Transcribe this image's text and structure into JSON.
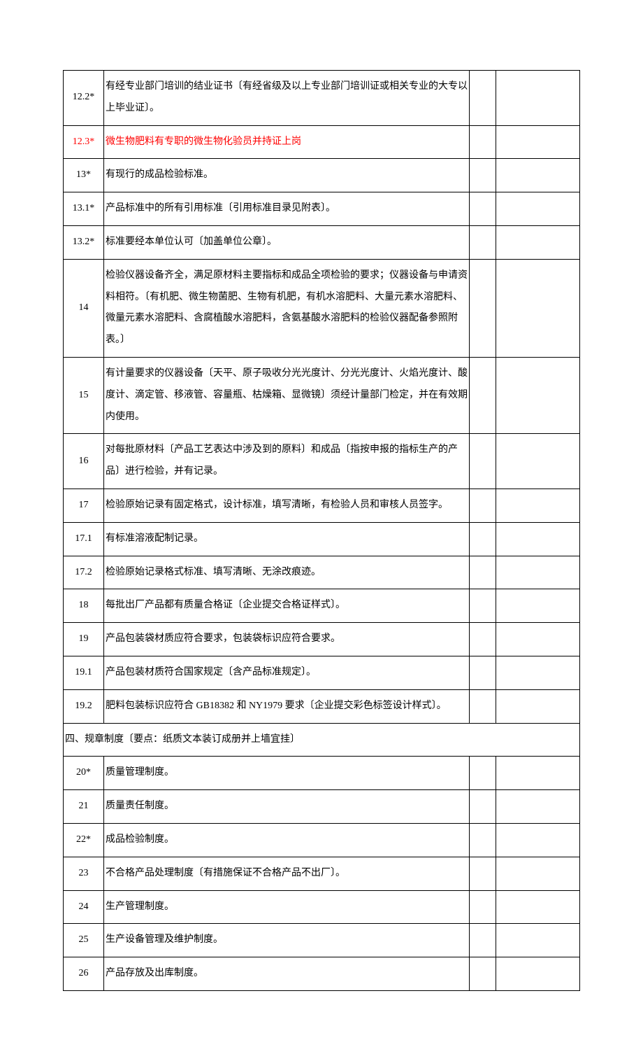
{
  "rows": [
    {
      "num": "12.2*",
      "desc": "有经专业部门培训的结业证书〔有经省级及以上专业部门培训证或相关专业的大专以上毕业证〕。",
      "highlight": false,
      "section": false
    },
    {
      "num": "12.3*",
      "desc": "微生物肥料有专职的微生物化验员并持证上岗",
      "highlight": true,
      "section": false
    },
    {
      "num": "13*",
      "desc": "有现行的成品检验标准。",
      "highlight": false,
      "section": false
    },
    {
      "num": "13.1*",
      "desc": "产品标准中的所有引用标准〔引用标准目录见附表〕。",
      "highlight": false,
      "section": false
    },
    {
      "num": "13.2*",
      "desc": "标准要经本单位认可〔加盖单位公章〕。",
      "highlight": false,
      "section": false
    },
    {
      "num": "14",
      "desc": "检验仪器设备齐全，满足原材料主要指标和成品全项检验的要求；仪器设备与申请资料相符。〔有机肥、微生物菌肥、生物有机肥，有机水溶肥料、大量元素水溶肥料、微量元素水溶肥料、含腐植酸水溶肥料，含氨基酸水溶肥料的检验仪器配备参照附表。〕",
      "highlight": false,
      "section": false
    },
    {
      "num": "15",
      "desc": "有计量要求的仪器设备〔天平、原子吸收分光光度计、分光光度计、火焰光度计、酸度计、滴定管、移液管、容量瓶、枯燥箱、显微镜〕须经计量部门检定，并在有效期内使用。",
      "highlight": false,
      "section": false
    },
    {
      "num": "16",
      "desc": "对每批原材料〔产品工艺表达中涉及到的原料〕和成品〔指按申报的指标生产的产品〕进行检验，并有记录。",
      "highlight": false,
      "section": false
    },
    {
      "num": "17",
      "desc": "检验原始记录有固定格式，设计标准，填写清晰，有检验人员和审核人员签字。",
      "highlight": false,
      "section": false
    },
    {
      "num": "17.1",
      "desc": "有标准溶液配制记录。",
      "highlight": false,
      "section": false
    },
    {
      "num": "17.2",
      "desc": "检验原始记录格式标准、填写清晰、无涂改痕迹。",
      "highlight": false,
      "section": false
    },
    {
      "num": "18",
      "desc": "每批出厂产品都有质量合格证〔企业提交合格证样式〕。",
      "highlight": false,
      "section": false
    },
    {
      "num": "19",
      "desc": "产品包装袋材质应符合要求，包装袋标识应符合要求。",
      "highlight": false,
      "section": false
    },
    {
      "num": "19.1",
      "desc": "产品包装材质符合国家规定〔含产品标准规定〕。",
      "highlight": false,
      "section": false
    },
    {
      "num": "19.2",
      "desc": "肥料包装标识应符合 GB18382 和 NY1979 要求〔企业提交彩色标签设计样式〕。",
      "highlight": false,
      "section": false
    },
    {
      "num": "",
      "desc": "四、规章制度〔要点：纸质文本装订成册并上墙宜挂〕",
      "highlight": false,
      "section": true
    },
    {
      "num": "20*",
      "desc": "质量管理制度。",
      "highlight": false,
      "section": false
    },
    {
      "num": "21",
      "desc": "质量责任制度。",
      "highlight": false,
      "section": false
    },
    {
      "num": "22*",
      "desc": "成品检验制度。",
      "highlight": false,
      "section": false
    },
    {
      "num": "23",
      "desc": "不合格产品处理制度〔有措施保证不合格产品不出厂〕。",
      "highlight": false,
      "section": false
    },
    {
      "num": "24",
      "desc": "生产管理制度。",
      "highlight": false,
      "section": false
    },
    {
      "num": "25",
      "desc": "生产设备管理及维护制度。",
      "highlight": false,
      "section": false
    },
    {
      "num": "26",
      "desc": "产品存放及出库制度。",
      "highlight": false,
      "section": false
    }
  ]
}
